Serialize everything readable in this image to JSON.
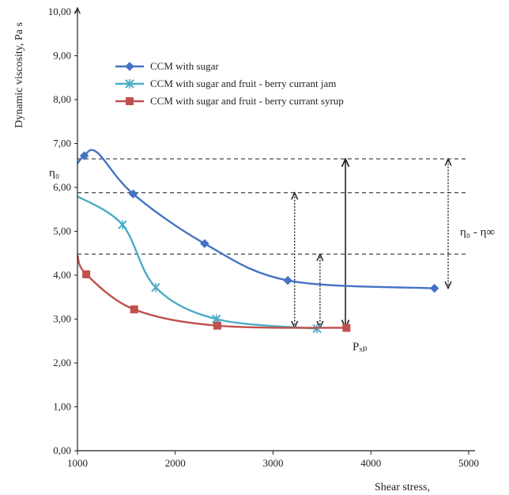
{
  "chart_data": {
    "type": "line",
    "title": "",
    "xlabel": "Shear stress,",
    "ylabel": "Dynamic viscosity, Pa s",
    "xlim": [
      1000,
      5000
    ],
    "ylim": [
      0,
      10
    ],
    "xticks": [
      "1000",
      "2000",
      "3000",
      "4000",
      "5000"
    ],
    "yticks": [
      "0,00",
      "1,00",
      "2,00",
      "3,00",
      "4,00",
      "5,00",
      "6,00",
      "7,00",
      "8,00",
      "9,00",
      "10,00"
    ],
    "grid": false,
    "legend_position": "top-left",
    "series": [
      {
        "name": "CCM with sugar",
        "color": "#4472c4",
        "marker": "diamond",
        "points": [
          [
            1000,
            6.55
          ],
          [
            1070,
            6.72
          ],
          [
            1200,
            6.8
          ],
          [
            1570,
            5.85
          ],
          [
            2300,
            4.72
          ],
          [
            3150,
            3.88
          ],
          [
            4650,
            3.7
          ]
        ],
        "marker_points": [
          [
            1070,
            6.72
          ],
          [
            1570,
            5.85
          ],
          [
            2300,
            4.72
          ],
          [
            3150,
            3.88
          ],
          [
            4650,
            3.7
          ]
        ]
      },
      {
        "name": "CCM with sugar and fruit - berry currant jam",
        "color": "#4bacc6",
        "marker": "star",
        "points": [
          [
            1000,
            5.8
          ],
          [
            1460,
            5.15
          ],
          [
            1800,
            3.72
          ],
          [
            2420,
            3.0
          ],
          [
            3450,
            2.78
          ]
        ],
        "marker_points": [
          [
            1460,
            5.15
          ],
          [
            1800,
            3.72
          ],
          [
            2420,
            3.0
          ],
          [
            3450,
            2.78
          ]
        ]
      },
      {
        "name": "CCM with sugar and fruit - berry currant syrup",
        "color": "#c0504d",
        "marker": "square",
        "points": [
          [
            1000,
            4.45
          ],
          [
            1090,
            4.02
          ],
          [
            1580,
            3.22
          ],
          [
            2430,
            2.85
          ],
          [
            3750,
            2.8
          ]
        ],
        "marker_points": [
          [
            1090,
            4.02
          ],
          [
            1580,
            3.22
          ],
          [
            2430,
            2.85
          ],
          [
            3750,
            2.8
          ]
        ]
      }
    ],
    "reference_lines_y": [
      6.65,
      5.88,
      4.48
    ],
    "arrows": [
      {
        "x": 3220,
        "y_top": 5.88,
        "y_bottom": 2.8,
        "style": "dotted"
      },
      {
        "x": 3480,
        "y_top": 4.48,
        "y_bottom": 2.8,
        "style": "dotted"
      },
      {
        "x": 3740,
        "y_top": 6.65,
        "y_bottom": 2.8,
        "style": "solid"
      },
      {
        "x": 4790,
        "y_top": 6.65,
        "y_bottom": 3.7,
        "style": "dotted"
      }
    ],
    "annotations": [
      {
        "text": "η₀",
        "x": 1000,
        "y": 6.2
      },
      {
        "text": "η₀ - η∞",
        "x": 4800,
        "y": 5.2
      },
      {
        "text": "Pₓₚ",
        "x": 3780,
        "y": 2.45
      }
    ]
  }
}
